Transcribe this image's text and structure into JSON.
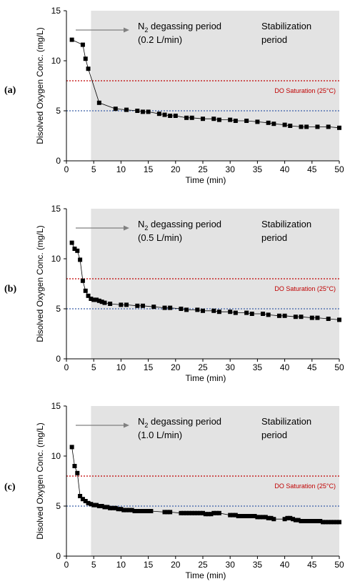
{
  "chart_data": [
    {
      "type": "scatter",
      "panel_label": "(a)",
      "xlabel": "Time (min)",
      "ylabel": "Disolved Oxygen Conc. (mg/L)",
      "xlim": [
        0,
        50
      ],
      "ylim": [
        0,
        15
      ],
      "x_ticks": [
        "0",
        "5",
        "10",
        "15",
        "20",
        "25",
        "30",
        "35",
        "40",
        "45",
        "50"
      ],
      "y_ticks": [
        "0",
        "5",
        "10",
        "15"
      ],
      "shaded_from": 4.5,
      "degas_line1": "N",
      "degas_sub": "2",
      "degas_line1_rest": " degassing period",
      "degas_line2": "(0.2 L/min)",
      "stab_line1": "Stabilization",
      "stab_line2": "period",
      "saturation_label": "DO Saturation (25°C)",
      "saturation_value": 8,
      "reference_value": 5,
      "series": [
        {
          "x": [
            1,
            3,
            3.5,
            4,
            6,
            9,
            11,
            13,
            14,
            15,
            17,
            18,
            19,
            20,
            22,
            23,
            25,
            27,
            28,
            30,
            31,
            33,
            35,
            37,
            38,
            40,
            41,
            43,
            44,
            46,
            48,
            50
          ],
          "y": [
            12.1,
            11.6,
            10.2,
            9.2,
            5.8,
            5.2,
            5.1,
            5.0,
            4.9,
            4.9,
            4.7,
            4.6,
            4.5,
            4.5,
            4.3,
            4.3,
            4.2,
            4.2,
            4.1,
            4.1,
            4.0,
            4.0,
            3.9,
            3.8,
            3.7,
            3.6,
            3.5,
            3.4,
            3.4,
            3.4,
            3.4,
            3.3
          ]
        }
      ]
    },
    {
      "type": "scatter",
      "panel_label": "(b)",
      "xlabel": "Time (min)",
      "ylabel": "Disolved Oxygen Conc. (mg/L)",
      "xlim": [
        0,
        50
      ],
      "ylim": [
        0,
        15
      ],
      "x_ticks": [
        "0",
        "5",
        "10",
        "15",
        "20",
        "25",
        "30",
        "35",
        "40",
        "45",
        "50"
      ],
      "y_ticks": [
        "0",
        "5",
        "10",
        "15"
      ],
      "shaded_from": 4.5,
      "degas_line1": "N",
      "degas_sub": "2",
      "degas_line1_rest": " degassing period",
      "degas_line2": "(0.5 L/min)",
      "stab_line1": "Stabilization",
      "stab_line2": "period",
      "saturation_label": "DO Saturation (25°C)",
      "saturation_value": 8,
      "reference_value": 5,
      "series": [
        {
          "x": [
            1,
            1.5,
            2,
            2.5,
            3,
            3.5,
            4,
            4.5,
            5,
            5.5,
            6,
            6.5,
            7,
            8,
            10,
            11,
            13,
            14,
            16,
            18,
            19,
            21,
            22,
            24,
            25,
            27,
            28,
            30,
            31,
            33,
            34,
            36,
            37,
            39,
            40,
            42,
            43,
            45,
            46,
            48,
            50
          ],
          "y": [
            11.6,
            11.0,
            10.8,
            9.9,
            7.8,
            6.8,
            6.3,
            6.0,
            5.9,
            5.9,
            5.8,
            5.7,
            5.6,
            5.5,
            5.4,
            5.4,
            5.3,
            5.3,
            5.2,
            5.1,
            5.1,
            5.0,
            4.9,
            4.9,
            4.8,
            4.8,
            4.7,
            4.7,
            4.6,
            4.6,
            4.5,
            4.5,
            4.4,
            4.3,
            4.3,
            4.2,
            4.2,
            4.1,
            4.1,
            4.0,
            3.9
          ]
        }
      ]
    },
    {
      "type": "scatter",
      "panel_label": "(c)",
      "xlabel": "Time (min)",
      "ylabel": "Disolved Oxygen Conc. (mg/L)",
      "xlim": [
        0,
        50
      ],
      "ylim": [
        0,
        15
      ],
      "x_ticks": [
        "0",
        "5",
        "10",
        "15",
        "20",
        "25",
        "30",
        "35",
        "40",
        "45",
        "50"
      ],
      "y_ticks": [
        "0",
        "5",
        "10",
        "15"
      ],
      "shaded_from": 4.5,
      "degas_line1": "N",
      "degas_sub": "2",
      "degas_line1_rest": " degassing period",
      "degas_line2": "(1.0 L/min)",
      "stab_line1": "Stabilization",
      "stab_line2": "period",
      "saturation_label": "DO Saturation (25°C)",
      "saturation_value": 8,
      "reference_value": 5,
      "series": [
        {
          "x": [
            1,
            1.5,
            2,
            2.5,
            3,
            3.5,
            4,
            4.5,
            5,
            5.5,
            6,
            6.5,
            7,
            7.5,
            8,
            8.5,
            9,
            9.5,
            10,
            10.5,
            11,
            11.5,
            12,
            12.5,
            13,
            13.5,
            14,
            14.5,
            15,
            15.5,
            18,
            18.5,
            19,
            21,
            21.5,
            22,
            22.5,
            23,
            23.5,
            24,
            24.5,
            25,
            25.5,
            26,
            26.5,
            27,
            27.5,
            28,
            30,
            30.5,
            31,
            31.5,
            32,
            32.5,
            33,
            33.5,
            34,
            34.5,
            35,
            35.5,
            36,
            36.5,
            37,
            37.5,
            38,
            40,
            40.5,
            41,
            41.5,
            42,
            42.5,
            43,
            43.5,
            44,
            44.5,
            45,
            45.5,
            46,
            46.5,
            47,
            47.5,
            48,
            48.5,
            49,
            49.5,
            50
          ],
          "y": [
            10.9,
            9.0,
            8.3,
            6.0,
            5.7,
            5.5,
            5.3,
            5.2,
            5.1,
            5.1,
            5.0,
            5.0,
            4.9,
            4.9,
            4.8,
            4.8,
            4.8,
            4.7,
            4.7,
            4.6,
            4.6,
            4.6,
            4.6,
            4.5,
            4.5,
            4.5,
            4.5,
            4.5,
            4.5,
            4.5,
            4.4,
            4.4,
            4.4,
            4.3,
            4.3,
            4.3,
            4.3,
            4.3,
            4.3,
            4.3,
            4.3,
            4.3,
            4.2,
            4.2,
            4.2,
            4.3,
            4.3,
            4.3,
            4.1,
            4.1,
            4.1,
            4.0,
            4.0,
            4.0,
            4.0,
            4.0,
            4.0,
            4.0,
            3.9,
            3.9,
            3.9,
            3.9,
            3.8,
            3.8,
            3.7,
            3.7,
            3.8,
            3.8,
            3.7,
            3.6,
            3.6,
            3.5,
            3.5,
            3.5,
            3.5,
            3.5,
            3.5,
            3.5,
            3.5,
            3.4,
            3.4,
            3.4,
            3.4,
            3.4,
            3.4,
            3.4
          ]
        }
      ]
    }
  ],
  "colors": {
    "shade": "#e3e3e3",
    "saturation_line": "#c00000",
    "reference_line": "#3a5fa8",
    "marker": "#000000",
    "arrow": "#808080"
  }
}
